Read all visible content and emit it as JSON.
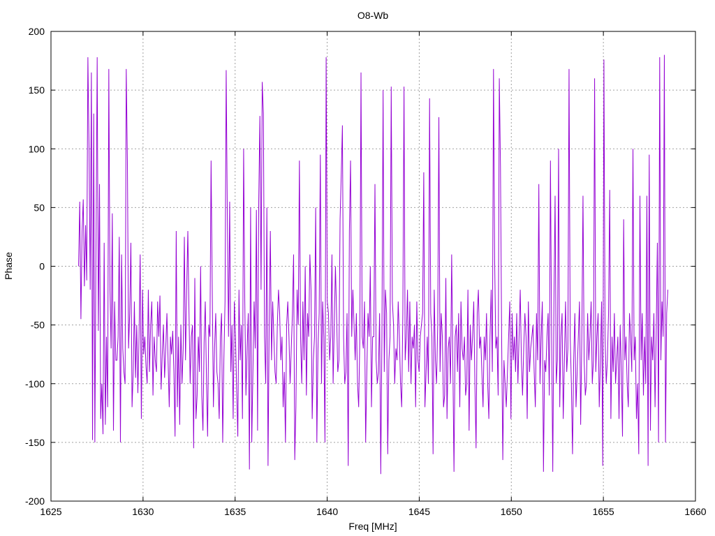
{
  "chart_data": {
    "type": "line",
    "title": "O8-Wb",
    "xlabel": "Freq [MHz]",
    "ylabel": "Phase",
    "xlim": [
      1625,
      1660
    ],
    "ylim": [
      -200,
      200
    ],
    "xticks": [
      1625,
      1630,
      1635,
      1640,
      1645,
      1650,
      1655,
      1660
    ],
    "yticks": [
      -200,
      -150,
      -100,
      -50,
      0,
      50,
      100,
      150,
      200
    ],
    "grid": true,
    "series": [
      {
        "color": "#9400d3",
        "x_range": [
          1626.5,
          1658.5
        ],
        "values": [
          0,
          55,
          -45,
          30,
          57,
          -17,
          35,
          -12,
          178,
          100,
          -20,
          165,
          -148,
          130,
          -150,
          20,
          178,
          -55,
          70,
          -130,
          -100,
          -143,
          20,
          -135,
          -60,
          -120,
          168,
          -20,
          -70,
          45,
          -140,
          -30,
          -80,
          -80,
          -60,
          25,
          -150,
          10,
          -70,
          -90,
          -100,
          168,
          90,
          -70,
          -40,
          20,
          -120,
          -90,
          -30,
          -95,
          -50,
          -108,
          -60,
          10,
          -130,
          -20,
          -75,
          -60,
          -85,
          -100,
          -20,
          -90,
          -50,
          -30,
          -110,
          -60,
          -80,
          -90,
          -30,
          -60,
          -25,
          -105,
          -75,
          -50,
          -95,
          -70,
          -40,
          -80,
          -120,
          -60,
          -75,
          -55,
          -90,
          -145,
          30,
          -120,
          -60,
          -135,
          -50,
          -100,
          -70,
          25,
          -80,
          -20,
          30,
          -40,
          -100,
          -60,
          -50,
          -155,
          -10,
          -130,
          -110,
          -60,
          -90,
          0,
          -110,
          -140,
          -65,
          -30,
          -95,
          -145,
          -50,
          -60,
          90,
          -20,
          -120,
          -70,
          -40,
          -90,
          -100,
          -130,
          -60,
          -40,
          -150,
          -80,
          -30,
          167,
          40,
          -60,
          55,
          -90,
          -50,
          -130,
          -30,
          -60,
          -105,
          -145,
          -20,
          -80,
          -50,
          -130,
          100,
          -30,
          -110,
          -70,
          -40,
          -173,
          50,
          -150,
          -90,
          -30,
          -70,
          48,
          -140,
          55,
          128,
          -20,
          157,
          130,
          -60,
          -100,
          50,
          -170,
          -50,
          30,
          -80,
          -30,
          -60,
          -90,
          -100,
          -50,
          -20,
          -40,
          -80,
          -60,
          -120,
          -90,
          -150,
          -50,
          -30,
          -60,
          -100,
          -70,
          -40,
          10,
          -165,
          -120,
          -20,
          -50,
          90,
          -60,
          -100,
          -30,
          -80,
          0,
          -110,
          -40,
          -60,
          10,
          -20,
          -130,
          -80,
          -60,
          50,
          -150,
          -70,
          -40,
          95,
          -100,
          -30,
          -60,
          -150,
          178,
          -30,
          -40,
          -80,
          -60,
          10,
          -100,
          -50,
          0,
          -40,
          -90,
          -80,
          40,
          78,
          120,
          -60,
          -100,
          -90,
          -40,
          -170,
          30,
          90,
          -60,
          -20,
          -50,
          -80,
          -40,
          -100,
          -120,
          -60,
          165,
          -60,
          -70,
          -30,
          -150,
          -90,
          -40,
          -60,
          0,
          -120,
          -60,
          -60,
          70,
          -80,
          -100,
          -90,
          -40,
          -177,
          -60,
          150,
          -90,
          -20,
          -40,
          -160,
          -80,
          -60,
          153,
          -30,
          -50,
          -100,
          -70,
          -80,
          -30,
          -60,
          -100,
          -120,
          -40,
          153,
          -80,
          -60,
          -20,
          -90,
          -30,
          -100,
          -60,
          -70,
          -50,
          -120,
          -30,
          -80,
          -90,
          -60,
          -50,
          -40,
          80,
          -120,
          -90,
          -60,
          -100,
          143,
          -40,
          -60,
          -160,
          -20,
          -80,
          -100,
          -50,
          127,
          -90,
          -40,
          -60,
          -120,
          -110,
          -10,
          -130,
          -70,
          -60,
          -100,
          10,
          -80,
          -175,
          -60,
          -50,
          -90,
          -40,
          -120,
          -30,
          -70,
          -80,
          -60,
          -110,
          -100,
          -20,
          -140,
          -50,
          -80,
          -60,
          -30,
          -100,
          -155,
          -40,
          -20,
          -70,
          -60,
          -90,
          -120,
          -60,
          -80,
          -40,
          -100,
          -130,
          -60,
          -20,
          -90,
          168,
          5,
          -70,
          -60,
          -110,
          160,
          85,
          -60,
          -165,
          -80,
          -100,
          -120,
          -90,
          -60,
          -30,
          -130,
          -40,
          -80,
          -60,
          -90,
          -40,
          -100,
          -60,
          -20,
          -80,
          -110,
          -70,
          -40,
          -60,
          -130,
          -30,
          -90,
          -70,
          -60,
          -50,
          -90,
          -120,
          -40,
          -80,
          70,
          -100,
          -60,
          -30,
          -175,
          -80,
          -90,
          -60,
          -40,
          -110,
          90,
          -60,
          -175,
          -30,
          60,
          -100,
          -80,
          100,
          -120,
          -60,
          -40,
          -130,
          -80,
          -30,
          -90,
          -70,
          168,
          -60,
          -100,
          -160,
          -80,
          -40,
          -120,
          -90,
          -60,
          -30,
          -135,
          -60,
          60,
          -80,
          -110,
          -100,
          -40,
          -80,
          -60,
          -30,
          -100,
          -80,
          160,
          -90,
          -60,
          -40,
          -120,
          -80,
          -30,
          -170,
          176,
          -60,
          -100,
          -80,
          -40,
          65,
          -130,
          -60,
          -90,
          -40,
          -100,
          -80,
          -60,
          -130,
          -50,
          -90,
          -145,
          40,
          -80,
          -60,
          -100,
          -120,
          -40,
          -60,
          -90,
          100,
          -80,
          -60,
          -130,
          -100,
          -160,
          60,
          -80,
          -40,
          -110,
          -60,
          -100,
          60,
          -170,
          95,
          -140,
          -60,
          -80,
          -40,
          -120,
          -55,
          20,
          -150,
          178,
          -80,
          -30,
          -60,
          180,
          -150,
          -40,
          -20
        ]
      }
    ]
  }
}
